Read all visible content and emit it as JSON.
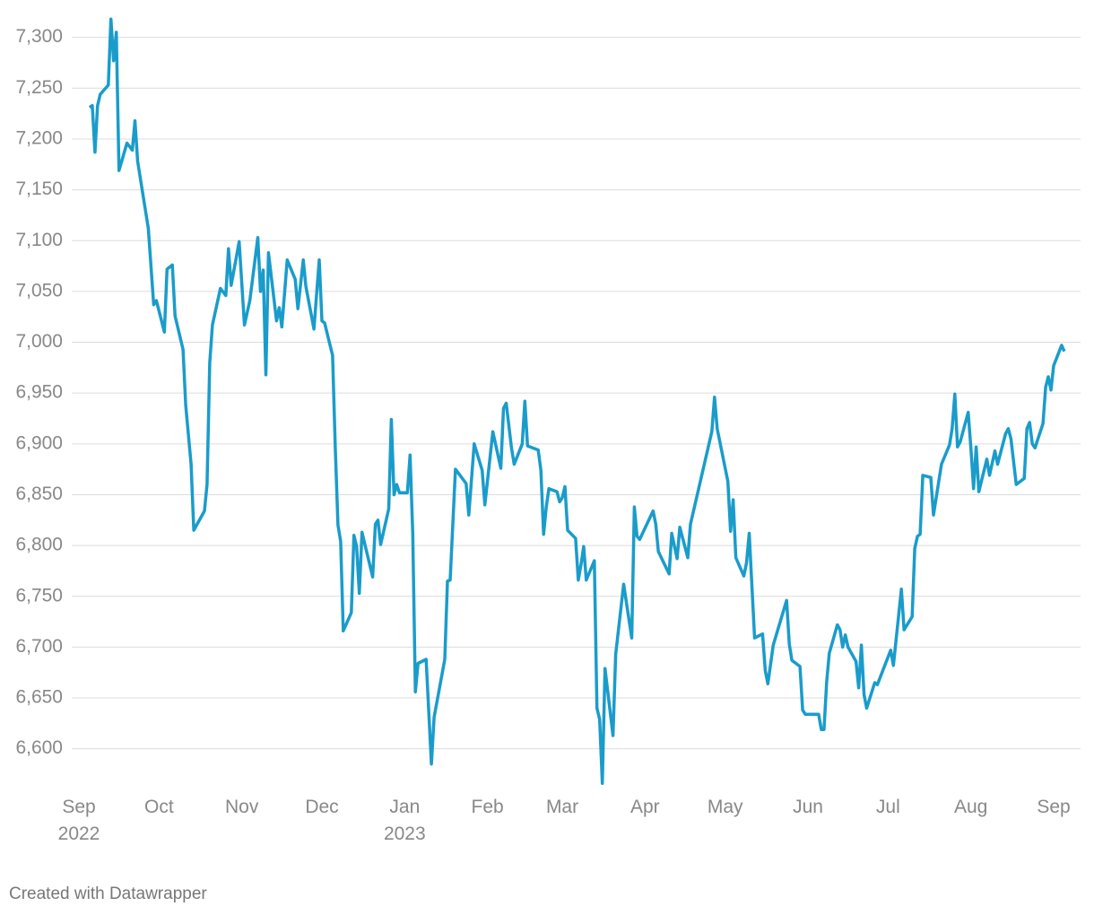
{
  "chart_data": {
    "type": "line",
    "color": "#1a9ccb",
    "grid": true,
    "x": [
      4,
      5,
      6,
      7,
      8,
      11,
      12,
      13,
      14,
      15,
      18,
      20,
      21,
      22,
      26,
      28,
      29,
      32,
      33,
      35,
      36,
      39,
      40,
      42,
      43,
      47,
      48,
      49,
      50,
      53,
      55,
      56,
      57,
      60,
      62,
      64,
      67,
      68,
      69,
      70,
      71,
      74,
      75,
      76,
      78,
      81,
      82,
      84,
      85,
      88,
      90,
      91,
      92,
      95,
      96,
      97,
      98,
      99,
      102,
      103,
      104,
      105,
      106,
      110,
      111,
      112,
      113,
      116,
      117,
      118,
      119,
      120,
      123,
      124,
      125,
      126,
      127,
      130,
      132,
      133,
      137,
      138,
      139,
      141,
      145,
      146,
      148,
      151,
      152,
      155,
      158,
      159,
      160,
      162,
      163,
      166,
      167,
      168,
      172,
      173,
      174,
      175,
      176,
      179,
      180,
      181,
      182,
      183,
      186,
      187,
      188,
      189,
      190,
      193,
      194,
      195,
      196,
      197,
      200,
      201,
      204,
      207,
      208,
      209,
      210,
      215,
      216,
      217,
      221,
      222,
      224,
      225,
      228,
      229,
      237,
      238,
      239,
      243,
      244,
      245,
      246,
      249,
      250,
      251,
      253,
      256,
      257,
      258,
      260,
      265,
      266,
      267,
      270,
      271,
      272,
      277,
      278,
      279,
      280,
      281,
      284,
      285,
      286,
      287,
      288,
      291,
      292,
      293,
      294,
      295,
      298,
      299,
      304,
      305,
      308,
      309,
      312,
      313,
      314,
      315,
      316,
      319,
      320,
      323,
      326,
      327,
      328,
      329,
      330,
      333,
      334,
      335,
      336,
      337,
      340,
      341,
      343,
      344,
      347,
      348,
      349,
      351,
      354,
      355,
      356,
      357,
      358,
      361,
      362,
      363,
      364,
      365,
      368,
      369
    ],
    "values": [
      7231,
      7233,
      7187,
      7233,
      7244,
      7253,
      7318,
      7277,
      7305,
      7169,
      7196,
      7189,
      7218,
      7178,
      7112,
      7037,
      7041,
      7010,
      7072,
      7076,
      7026,
      6993,
      6938,
      6880,
      6815,
      6834,
      6860,
      6980,
      7017,
      7053,
      7046,
      7092,
      7056,
      7099,
      7017,
      7041,
      7103,
      7050,
      7071,
      6968,
      7088,
      7021,
      7034,
      7015,
      7081,
      7062,
      7033,
      7081,
      7055,
      7013,
      7081,
      7021,
      7019,
      6987,
      6896,
      6820,
      6804,
      6716,
      6734,
      6810,
      6799,
      6753,
      6813,
      6769,
      6821,
      6825,
      6801,
      6836,
      6924,
      6850,
      6860,
      6852,
      6852,
      6889,
      6812,
      6656,
      6684,
      6688,
      6585,
      6631,
      6688,
      6765,
      6766,
      6875,
      6861,
      6830,
      6900,
      6874,
      6840,
      6912,
      6876,
      6935,
      6940,
      6896,
      6880,
      6900,
      6942,
      6898,
      6894,
      6874,
      6811,
      6838,
      6856,
      6853,
      6843,
      6847,
      6858,
      6815,
      6807,
      6766,
      6781,
      6799,
      6766,
      6785,
      6640,
      6629,
      6566,
      6679,
      6613,
      6693,
      6762,
      6709,
      6838,
      6809,
      6806,
      6834,
      6821,
      6794,
      6772,
      6812,
      6787,
      6818,
      6788,
      6821,
      6912,
      6946,
      6915,
      6863,
      6814,
      6845,
      6788,
      6770,
      6783,
      6812,
      6709,
      6713,
      6677,
      6664,
      6702,
      6746,
      6703,
      6687,
      6681,
      6638,
      6634,
      6634,
      6619,
      6619,
      6666,
      6694,
      6722,
      6717,
      6700,
      6712,
      6700,
      6686,
      6660,
      6702,
      6653,
      6640,
      6665,
      6663,
      6697,
      6682,
      6757,
      6717,
      6730,
      6797,
      6809,
      6811,
      6869,
      6867,
      6830,
      6880,
      6899,
      6915,
      6949,
      6897,
      6902,
      6931,
      6896,
      6856,
      6897,
      6853,
      6885,
      6869,
      6893,
      6880,
      6910,
      6915,
      6905,
      6860,
      6866,
      6915,
      6921,
      6900,
      6896,
      6920,
      6956,
      6966,
      6953,
      6977,
      6997,
      6991
    ],
    "xlim": [
      0,
      365
    ],
    "xticks": [
      {
        "value": 0,
        "label": "Sep 2022"
      },
      {
        "value": 30,
        "label": "Oct"
      },
      {
        "value": 61,
        "label": "Nov"
      },
      {
        "value": 91,
        "label": "Dec"
      },
      {
        "value": 122,
        "label": "Jan 2023"
      },
      {
        "value": 153,
        "label": "Feb"
      },
      {
        "value": 181,
        "label": "Mar"
      },
      {
        "value": 212,
        "label": "Apr"
      },
      {
        "value": 242,
        "label": "May"
      },
      {
        "value": 273,
        "label": "Jun"
      },
      {
        "value": 303,
        "label": "Jul"
      },
      {
        "value": 334,
        "label": "Aug"
      },
      {
        "value": 365,
        "label": "Sep"
      }
    ],
    "ylim": [
      6560,
      7320
    ],
    "yticks": [
      {
        "value": 6600,
        "label": "6,600"
      },
      {
        "value": 6650,
        "label": "6,650"
      },
      {
        "value": 6700,
        "label": "6,700"
      },
      {
        "value": 6750,
        "label": "6,750"
      },
      {
        "value": 6800,
        "label": "6,800"
      },
      {
        "value": 6850,
        "label": "6,850"
      },
      {
        "value": 6900,
        "label": "6,900"
      },
      {
        "value": 6950,
        "label": "6,950"
      },
      {
        "value": 7000,
        "label": "7,000"
      },
      {
        "value": 7050,
        "label": "7,050"
      },
      {
        "value": 7100,
        "label": "7,100"
      },
      {
        "value": 7150,
        "label": "7,150"
      },
      {
        "value": 7200,
        "label": "7,200"
      },
      {
        "value": 7250,
        "label": "7,250"
      },
      {
        "value": 7300,
        "label": "7,300"
      }
    ],
    "credit": "Created with Datawrapper"
  }
}
